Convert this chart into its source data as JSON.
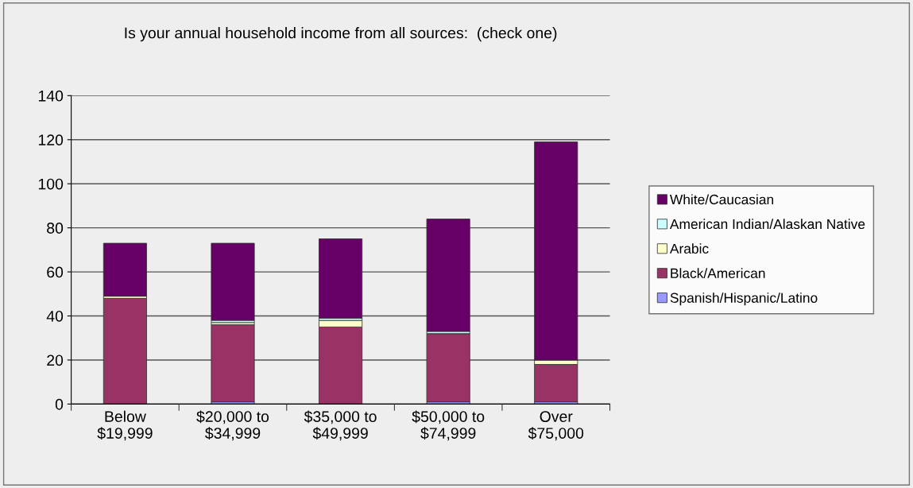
{
  "chart_data": {
    "type": "bar",
    "title": "Is your annual household income from all sources:  (check one)",
    "categories": [
      "Below\n$19,999",
      "$20,000 to\n$34,999",
      "$35,000 to\n$49,999",
      "$50,000 to\n$74,999",
      "Over\n$75,000"
    ],
    "stacked": true,
    "series": [
      {
        "name": "Spanish/Hispanic/Latino",
        "color": "#9999ff",
        "values": [
          0,
          1,
          0,
          1,
          1
        ]
      },
      {
        "name": "Black/American",
        "color": "#993366",
        "values": [
          48,
          35,
          35,
          31,
          17
        ]
      },
      {
        "name": "Arabic",
        "color": "#ffffcc",
        "values": [
          1,
          1,
          3,
          0,
          2
        ]
      },
      {
        "name": "American Indian/Alaskan Native",
        "color": "#ccffff",
        "values": [
          0,
          1,
          1,
          1,
          0
        ]
      },
      {
        "name": "White/Caucasian",
        "color": "#660066",
        "values": [
          24,
          35,
          36,
          51,
          99
        ]
      }
    ],
    "ylim": [
      0,
      140
    ],
    "yticks": [
      0,
      20,
      40,
      60,
      80,
      100,
      120,
      140
    ],
    "grid": "y",
    "legend": "right"
  }
}
